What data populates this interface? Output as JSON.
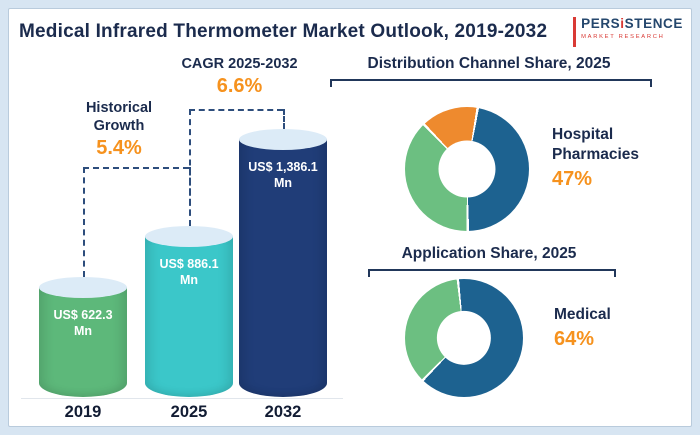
{
  "header": {
    "title": "Medical Infrared Thermometer Market Outlook, 2019-2032",
    "logo": {
      "part1": "PERS",
      "part2": "i",
      "part3": "STENCE",
      "subtitle": "MARKET RESEARCH"
    }
  },
  "colors": {
    "accent_orange": "#f6921e",
    "navy_text": "#1b2b4d",
    "connector_navy": "#2d4d7c",
    "background": "#d7e5f2"
  },
  "chart_data": [
    {
      "type": "bar",
      "title": "Medical Infrared Thermometer Market Outlook, 2019-2032",
      "categories": [
        "2019",
        "2025",
        "2032"
      ],
      "values": [
        622.3,
        886.1,
        1386.1
      ],
      "unit": "US$ Mn",
      "value_labels": [
        "US$ 622.3 Mn",
        "US$ 886.1 Mn",
        "US$ 1,386.1 Mn"
      ],
      "bar_colors": [
        "#5db87a",
        "#3bc7c9",
        "#203d78"
      ],
      "annotations": [
        {
          "label": "Historical Growth",
          "value": "5.4%",
          "from": "2019",
          "to": "2025"
        },
        {
          "label": "CAGR 2025-2032",
          "value": "6.6%",
          "from": "2025",
          "to": "2032"
        }
      ]
    },
    {
      "type": "pie",
      "title": "Distribution Channel Share, 2025",
      "slices": [
        {
          "label": "Hospital Pharmacies",
          "value": 47,
          "color": "#1d6290"
        },
        {
          "label": "",
          "value": 38,
          "color": "#6cbf81"
        },
        {
          "label": "",
          "value": 15,
          "color": "#ee8a2e"
        }
      ],
      "callout": {
        "label": "Hospital Pharmacies",
        "value": "47%"
      }
    },
    {
      "type": "pie",
      "title": "Application Share, 2025",
      "slices": [
        {
          "label": "Medical",
          "value": 64,
          "color": "#1d6290"
        },
        {
          "label": "",
          "value": 36,
          "color": "#6cbf81"
        }
      ],
      "callout": {
        "label": "Medical",
        "value": "64%"
      }
    }
  ]
}
